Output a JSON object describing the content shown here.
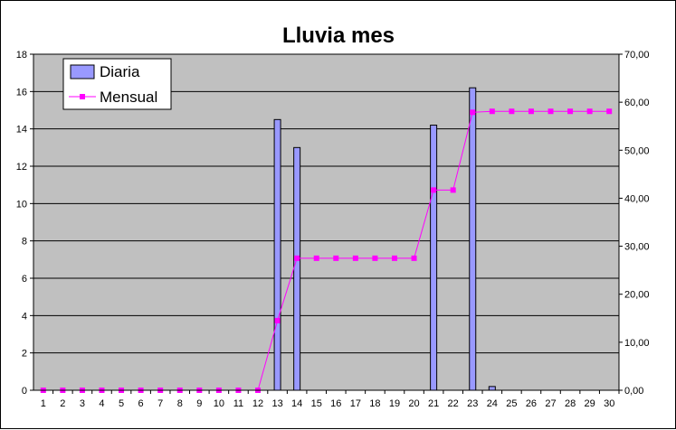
{
  "chart_data": {
    "type": "bar",
    "title": "Lluvia mes",
    "xlabel": "",
    "ylabel": "",
    "x": [
      1,
      2,
      3,
      4,
      5,
      6,
      7,
      8,
      9,
      10,
      11,
      12,
      13,
      14,
      15,
      16,
      17,
      18,
      19,
      20,
      21,
      22,
      23,
      24,
      25,
      26,
      27,
      28,
      29,
      30
    ],
    "ylim": [
      0,
      18
    ],
    "y_ticks": [
      0,
      2,
      4,
      6,
      8,
      10,
      12,
      14,
      16,
      18
    ],
    "y2lim": [
      0,
      70
    ],
    "y2_ticks": [
      "0,00",
      "10,00",
      "20,00",
      "30,00",
      "40,00",
      "50,00",
      "60,00",
      "70,00"
    ],
    "grid": true,
    "legend_position": "top-left",
    "series": [
      {
        "name": "Diaria",
        "type": "bar",
        "axis": "left",
        "color": "#9999ff",
        "values": [
          0,
          0,
          0,
          0,
          0,
          0,
          0,
          0,
          0,
          0,
          0,
          0,
          14.5,
          13.0,
          0,
          0,
          0,
          0,
          0,
          0,
          14.2,
          0,
          16.2,
          0.2,
          0,
          0,
          0,
          0,
          0,
          0
        ]
      },
      {
        "name": "Mensual",
        "type": "line",
        "axis": "right",
        "color": "#ff00ff",
        "values": [
          0,
          0,
          0,
          0,
          0,
          0,
          0,
          0,
          0,
          0,
          0,
          0,
          14.5,
          27.5,
          27.5,
          27.5,
          27.5,
          27.5,
          27.5,
          27.5,
          41.7,
          41.7,
          57.9,
          58.1,
          58.1,
          58.1,
          58.1,
          58.1,
          58.1,
          58.1
        ]
      }
    ],
    "colors": {
      "plot_background": "#c0c0c0",
      "gridline": "#000000",
      "bar_outline": "#000000"
    }
  }
}
